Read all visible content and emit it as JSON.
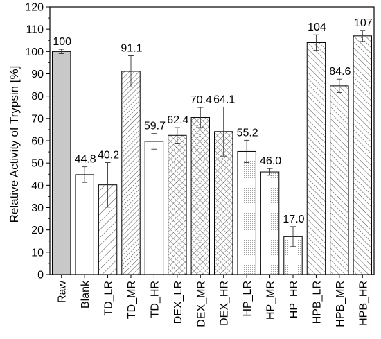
{
  "chart_data": {
    "type": "bar",
    "ylabel": "Relative Activity of Trypsin [%]",
    "xlabel": "",
    "ylim": [
      0,
      120
    ],
    "yticks": [
      0,
      10,
      20,
      30,
      40,
      50,
      60,
      70,
      80,
      90,
      100,
      110,
      120
    ],
    "categories": [
      "Raw",
      "Blank",
      "TD_LR",
      "TD_MR",
      "TD_HR",
      "DEX_LR",
      "DEX_MR",
      "DEX_HR",
      "HP_LR",
      "HP_MR",
      "HP_HR",
      "HPB_LR",
      "HPB_MR",
      "HPB_HR"
    ],
    "values": [
      100,
      44.8,
      40.2,
      91.1,
      59.7,
      62.4,
      70.4,
      64.1,
      55.2,
      46.0,
      17.0,
      104,
      84.6,
      107
    ],
    "value_labels": [
      "100",
      "44.8",
      "40.2",
      "91.1",
      "59.7",
      "62.4",
      "70.4",
      "64.1",
      "55.2",
      "46.0",
      "17.0",
      "104",
      "84.6",
      "107"
    ],
    "errors": [
      1,
      3.5,
      10,
      7,
      3.5,
      3.5,
      4.5,
      11,
      5,
      1.5,
      4.5,
      3.5,
      3,
      2.5
    ],
    "patterns": [
      "solid-gray",
      "none",
      "diag-light",
      "diag-dense",
      "none",
      "cross-dense",
      "cross-dense",
      "cross-dense",
      "dots",
      "dots",
      "dots",
      "diag-back",
      "diag-back",
      "diag-back"
    ],
    "grid": false,
    "colors": {
      "raw_fill": "#c8c8c8",
      "outline": "#000000"
    }
  }
}
